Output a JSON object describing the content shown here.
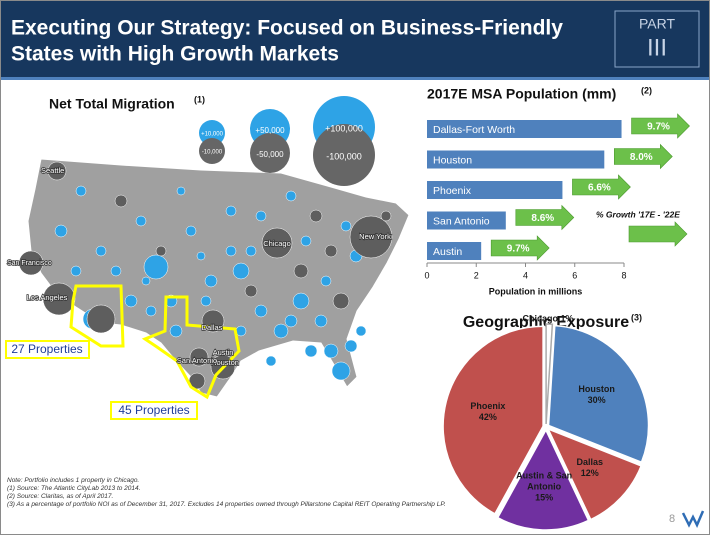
{
  "header": {
    "title_lines": [
      "Executing Our Strategy: Focused on Business-Friendly",
      "States with High Growth Markets"
    ],
    "part_label": "PART",
    "part_number": "III"
  },
  "map": {
    "title": "Net Total Migration",
    "title_note": "(1)",
    "bubble_legend": [
      "+10,000",
      "-10,000",
      "+50,000",
      "-50,000",
      "+100,000",
      "-100,000"
    ],
    "cities": [
      "Seattle",
      "San Francisco",
      "Los Angeles",
      "Chicago",
      "New York",
      "Dallas",
      "Austin",
      "Houston",
      "San Antonio"
    ],
    "callouts": [
      "27 Properties",
      "45 Properties"
    ]
  },
  "chart_data": [
    {
      "type": "bar",
      "title": "2017E MSA Population (mm)",
      "title_note": "(2)",
      "categories": [
        "Dallas-Fort Worth",
        "Houston",
        "Phoenix",
        "San Antonio",
        "Austin"
      ],
      "values": [
        7.9,
        7.2,
        5.5,
        3.2,
        2.2
      ],
      "color": "#4f81bd",
      "xlabel": "Population in millions",
      "xlim": [
        0,
        8
      ],
      "xticks": [
        0,
        2,
        4,
        6,
        8
      ],
      "growth": {
        "name": "% Growth '17E - '22E",
        "color": "#6cc04a",
        "values": [
          9.7,
          8.0,
          6.6,
          8.6,
          9.7
        ],
        "value_labels": [
          "9.7%",
          "8.0%",
          "6.6%",
          "8.6%",
          "9.7%"
        ]
      }
    },
    {
      "type": "pie",
      "title": "Geographic Exposure",
      "title_note": "(3)",
      "categories": [
        "Chicago",
        "Houston",
        "Dallas",
        "Austin & San Antonio",
        "Phoenix"
      ],
      "values": [
        1,
        30,
        12,
        15,
        42
      ],
      "value_labels": [
        "1%",
        "30%",
        "12%",
        "15%",
        "42%"
      ],
      "colors": [
        "#ffffff",
        "#4f81bd",
        "#c0504d",
        "#7030a0",
        "#c0504d"
      ]
    }
  ],
  "footnotes": [
    "Note: Portfolio includes 1 property in Chicago.",
    "(1)     Source: The Atlantic CityLab 2013 to 2014.",
    "(2)     Source: Claritas, as of April 2017.",
    "(3)     As a percentage of portfolio NOI as of December 31, 2017. Excludes 14 properties owned through Pillarstone Capital REIT Operating Partnership LP."
  ],
  "page_number": "8"
}
